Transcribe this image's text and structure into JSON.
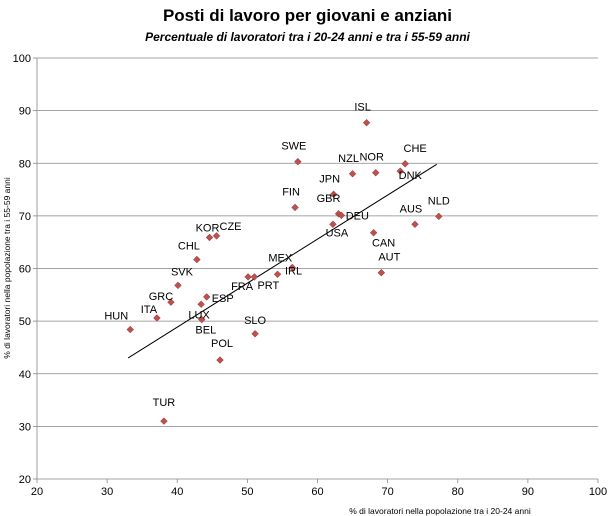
{
  "chart_data": {
    "type": "scatter",
    "title": "Posti di lavoro per giovani e anziani",
    "subtitle": "Percentuale di lavoratori tra i 20-24 anni  e tra i 55-59 anni",
    "xlabel": "% di lavoratori nella popolazione tra i 20-24 anni",
    "ylabel": "% di lavoratori nella popolazione tra i 55-59 anni",
    "xlim": [
      20,
      100
    ],
    "ylim": [
      20,
      100
    ],
    "xticks": [
      "20",
      "30",
      "40",
      "50",
      "60",
      "70",
      "80",
      "90",
      "100"
    ],
    "yticks": [
      "20",
      "30",
      "40",
      "50",
      "60",
      "70",
      "80",
      "90",
      "100"
    ],
    "grid": "horizontal",
    "marker_color": "#c0504d",
    "trendline": {
      "x": [
        33,
        77
      ],
      "y": [
        43.0,
        79.8
      ]
    },
    "points": [
      {
        "label": "ISL",
        "x": 67.0,
        "y": 87.7
      },
      {
        "label": "SWE",
        "x": 57.2,
        "y": 80.3
      },
      {
        "label": "NZL",
        "x": 65.0,
        "y": 78.0
      },
      {
        "label": "NOR",
        "x": 68.3,
        "y": 78.2
      },
      {
        "label": "CHE",
        "x": 72.5,
        "y": 79.9
      },
      {
        "label": "DNK",
        "x": 71.8,
        "y": 78.5
      },
      {
        "label": "JPN",
        "x": 62.3,
        "y": 74.1
      },
      {
        "label": "FIN",
        "x": 56.8,
        "y": 71.6
      },
      {
        "label": "NLD",
        "x": 77.3,
        "y": 69.9
      },
      {
        "label": "AUS",
        "x": 73.9,
        "y": 68.4
      },
      {
        "label": "GBR",
        "x": 63.0,
        "y": 70.4
      },
      {
        "label": "DEU",
        "x": 63.4,
        "y": 70.1
      },
      {
        "label": "USA",
        "x": 62.2,
        "y": 68.4
      },
      {
        "label": "CAN",
        "x": 68.0,
        "y": 66.8
      },
      {
        "label": "AUT",
        "x": 69.1,
        "y": 59.2
      },
      {
        "label": "KOR",
        "x": 44.6,
        "y": 65.9
      },
      {
        "label": "CZE",
        "x": 45.6,
        "y": 66.2
      },
      {
        "label": "CHL",
        "x": 42.8,
        "y": 61.7
      },
      {
        "label": "MEX",
        "x": 56.4,
        "y": 60.2
      },
      {
        "label": "IRL",
        "x": 54.3,
        "y": 58.9
      },
      {
        "label": "FRA",
        "x": 50.1,
        "y": 58.4
      },
      {
        "label": "PRT",
        "x": 51.0,
        "y": 58.4
      },
      {
        "label": "SVK",
        "x": 40.1,
        "y": 56.8
      },
      {
        "label": "GRC",
        "x": 39.1,
        "y": 53.6
      },
      {
        "label": "ESP",
        "x": 44.2,
        "y": 54.6
      },
      {
        "label": "LUX",
        "x": 43.4,
        "y": 53.2
      },
      {
        "label": "ITA",
        "x": 37.1,
        "y": 50.6
      },
      {
        "label": "HUN",
        "x": 33.3,
        "y": 48.4
      },
      {
        "label": "BEL",
        "x": 43.5,
        "y": 50.3
      },
      {
        "label": "SLO",
        "x": 51.1,
        "y": 47.6
      },
      {
        "label": "POL",
        "x": 46.1,
        "y": 42.6
      },
      {
        "label": "TUR",
        "x": 38.1,
        "y": 31.0
      }
    ]
  }
}
